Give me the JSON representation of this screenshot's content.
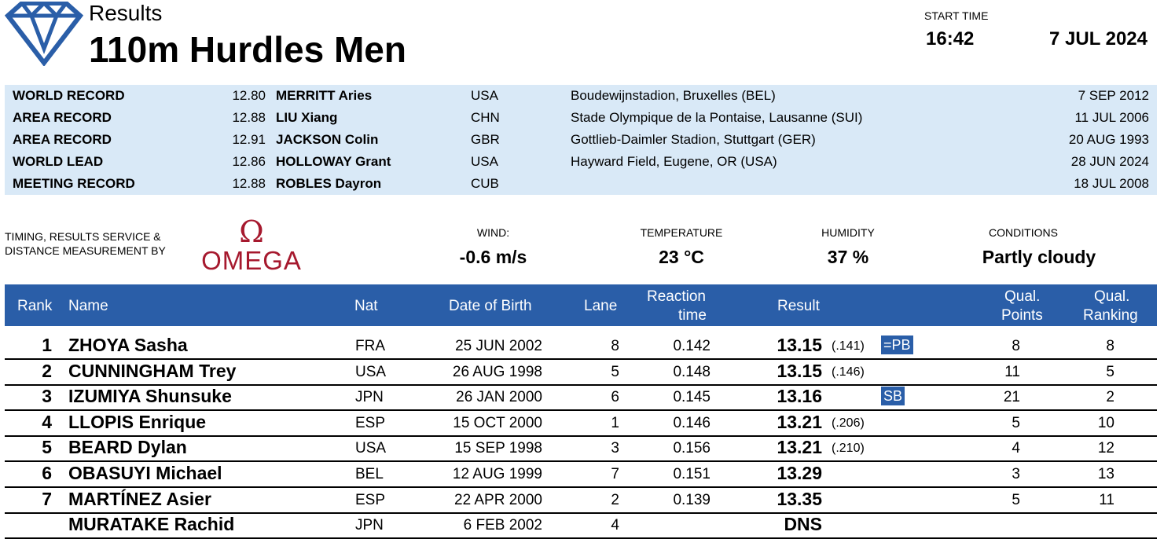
{
  "header": {
    "results_label": "Results",
    "event_title": "110m Hurdles Men",
    "start_time_label": "START TIME",
    "start_time": "16:42",
    "date": "7 JUL 2024"
  },
  "records": [
    {
      "type": "WORLD RECORD",
      "mark": "12.80",
      "name": "MERRITT Aries",
      "nat": "USA",
      "venue": "Boudewijnstadion, Bruxelles (BEL)",
      "date": "7 SEP 2012"
    },
    {
      "type": "AREA RECORD",
      "mark": "12.88",
      "name": "LIU Xiang",
      "nat": "CHN",
      "venue": "Stade Olympique de la Pontaise, Lausanne (SUI)",
      "date": "11 JUL 2006"
    },
    {
      "type": "AREA RECORD",
      "mark": "12.91",
      "name": "JACKSON Colin",
      "nat": "GBR",
      "venue": "Gottlieb-Daimler Stadion, Stuttgart (GER)",
      "date": "20 AUG 1993"
    },
    {
      "type": "WORLD LEAD",
      "mark": "12.86",
      "name": "HOLLOWAY Grant",
      "nat": "USA",
      "venue": "Hayward Field, Eugene, OR (USA)",
      "date": "28 JUN 2024"
    },
    {
      "type": "MEETING RECORD",
      "mark": "12.88",
      "name": "ROBLES Dayron",
      "nat": "CUB",
      "venue": "",
      "date": "18 JUL 2008"
    }
  ],
  "timing": {
    "line1": "TIMING, RESULTS SERVICE &",
    "line2": "DISTANCE MEASUREMENT BY",
    "brand": "OMEGA",
    "brand_color": "#a6192e"
  },
  "conditions": {
    "wind_label": "WIND:",
    "wind": "-0.6 m/s",
    "temperature_label": "TEMPERATURE",
    "temperature": "23 °C",
    "humidity_label": "HUMIDITY",
    "humidity": "37 %",
    "conditions_label": "CONDITIONS",
    "conditions": "Partly cloudy"
  },
  "table": {
    "headers": {
      "rank": "Rank",
      "name": "Name",
      "nat": "Nat",
      "dob": "Date of Birth",
      "lane": "Lane",
      "reaction1": "Reaction",
      "reaction2": "time",
      "result": "Result",
      "qual_points1": "Qual.",
      "qual_points2": "Points",
      "qual_ranking1": "Qual.",
      "qual_ranking2": "Ranking"
    },
    "rows": [
      {
        "rank": "1",
        "name": "ZHOYA Sasha",
        "nat": "FRA",
        "dob": "25 JUN 2002",
        "lane": "8",
        "reaction": "0.142",
        "result": "13.15",
        "tie": "(.141)",
        "badge": "=PB",
        "points": "8",
        "ranking": "8"
      },
      {
        "rank": "2",
        "name": "CUNNINGHAM Trey",
        "nat": "USA",
        "dob": "26 AUG 1998",
        "lane": "5",
        "reaction": "0.148",
        "result": "13.15",
        "tie": "(.146)",
        "badge": "",
        "points": "11",
        "ranking": "5"
      },
      {
        "rank": "3",
        "name": "IZUMIYA Shunsuke",
        "nat": "JPN",
        "dob": "26 JAN 2000",
        "lane": "6",
        "reaction": "0.145",
        "result": "13.16",
        "tie": "",
        "badge": "SB",
        "points": "21",
        "ranking": "2"
      },
      {
        "rank": "4",
        "name": "LLOPIS Enrique",
        "nat": "ESP",
        "dob": "15 OCT 2000",
        "lane": "1",
        "reaction": "0.146",
        "result": "13.21",
        "tie": "(.206)",
        "badge": "",
        "points": "5",
        "ranking": "10"
      },
      {
        "rank": "5",
        "name": "BEARD Dylan",
        "nat": "USA",
        "dob": "15 SEP 1998",
        "lane": "3",
        "reaction": "0.156",
        "result": "13.21",
        "tie": "(.210)",
        "badge": "",
        "points": "4",
        "ranking": "12"
      },
      {
        "rank": "6",
        "name": "OBASUYI Michael",
        "nat": "BEL",
        "dob": "12 AUG 1999",
        "lane": "7",
        "reaction": "0.151",
        "result": "13.29",
        "tie": "",
        "badge": "",
        "points": "3",
        "ranking": "13"
      },
      {
        "rank": "7",
        "name": "MARTÍNEZ Asier",
        "nat": "ESP",
        "dob": "22 APR 2000",
        "lane": "2",
        "reaction": "0.139",
        "result": "13.35",
        "tie": "",
        "badge": "",
        "points": "5",
        "ranking": "11"
      },
      {
        "rank": "",
        "name": "MURATAKE Rachid",
        "nat": "JPN",
        "dob": "6 FEB 2002",
        "lane": "4",
        "reaction": "",
        "result": "DNS",
        "tie": "",
        "badge": "",
        "points": "",
        "ranking": ""
      }
    ]
  },
  "colors": {
    "header_blue": "#2a5ea8",
    "records_bg": "#d9e9f7"
  }
}
